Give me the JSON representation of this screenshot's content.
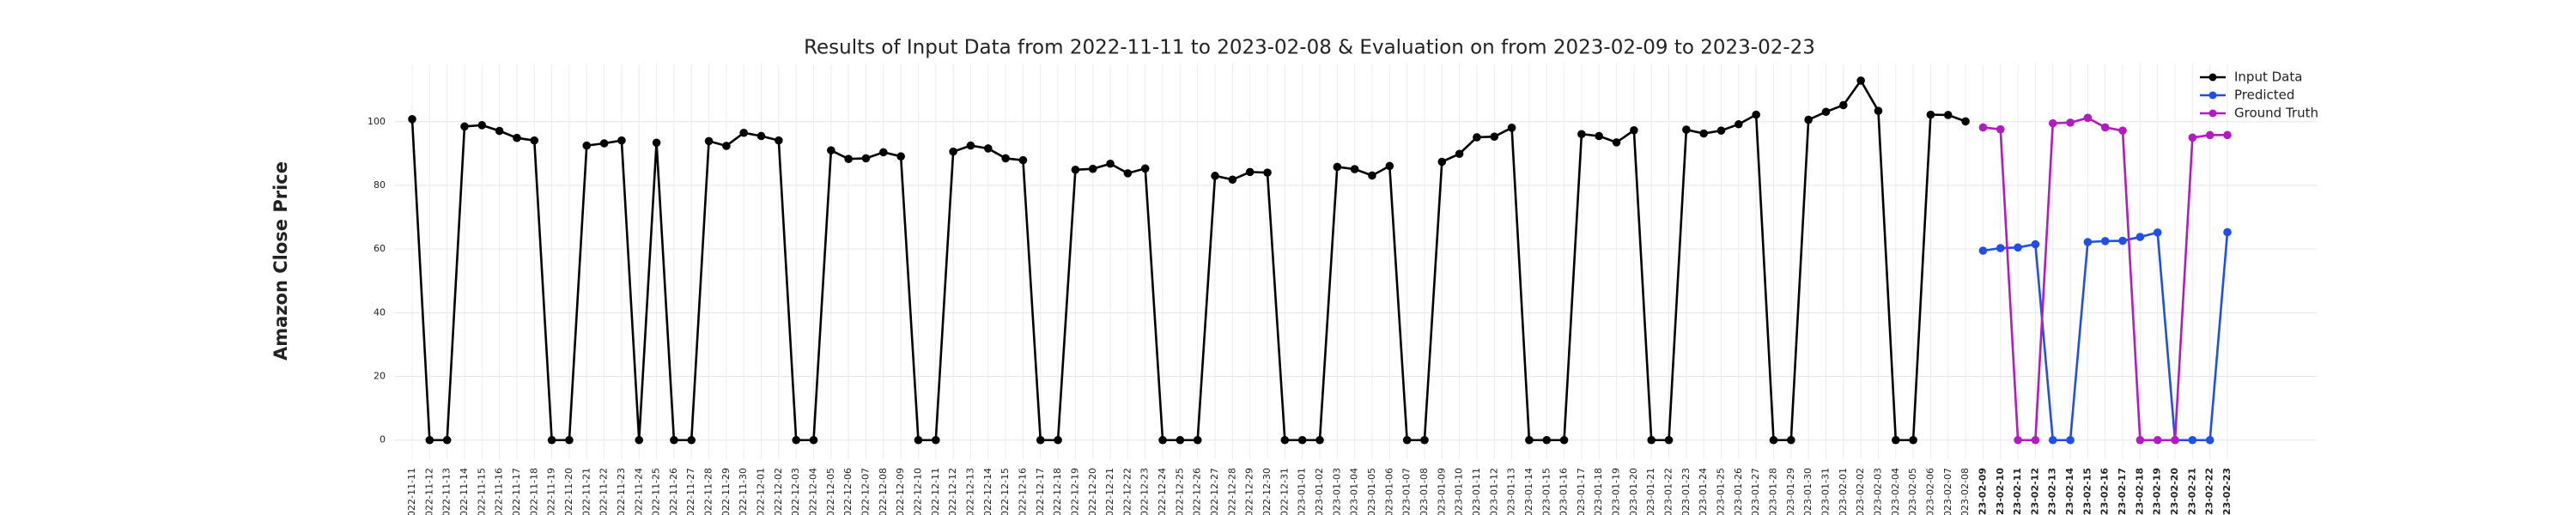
{
  "chart_data": {
    "type": "line",
    "title": "Results of Input Data from 2022-11-11 to 2023-02-08 & Evaluation on from 2023-02-09 to 2023-02-23",
    "y_label": "Amazon Close Price",
    "categories": [
      "2022-11-11",
      "2022-11-12",
      "2022-11-13",
      "2022-11-14",
      "2022-11-15",
      "2022-11-16",
      "2022-11-17",
      "2022-11-18",
      "2022-11-19",
      "2022-11-20",
      "2022-11-21",
      "2022-11-22",
      "2022-11-23",
      "2022-11-24",
      "2022-11-25",
      "2022-11-26",
      "2022-11-27",
      "2022-11-28",
      "2022-11-29",
      "2022-11-30",
      "2022-12-01",
      "2022-12-02",
      "2022-12-03",
      "2022-12-04",
      "2022-12-05",
      "2022-12-06",
      "2022-12-07",
      "2022-12-08",
      "2022-12-09",
      "2022-12-10",
      "2022-12-11",
      "2022-12-12",
      "2022-12-13",
      "2022-12-14",
      "2022-12-15",
      "2022-12-16",
      "2022-12-17",
      "2022-12-18",
      "2022-12-19",
      "2022-12-20",
      "2022-12-21",
      "2022-12-22",
      "2022-12-23",
      "2022-12-24",
      "2022-12-25",
      "2022-12-26",
      "2022-12-27",
      "2022-12-28",
      "2022-12-29",
      "2022-12-30",
      "2022-12-31",
      "2023-01-01",
      "2023-01-02",
      "2023-01-03",
      "2023-01-04",
      "2023-01-05",
      "2023-01-06",
      "2023-01-07",
      "2023-01-08",
      "2023-01-09",
      "2023-01-10",
      "2023-01-11",
      "2023-01-12",
      "2023-01-13",
      "2023-01-14",
      "2023-01-15",
      "2023-01-16",
      "2023-01-17",
      "2023-01-18",
      "2023-01-19",
      "2023-01-20",
      "2023-01-21",
      "2023-01-22",
      "2023-01-23",
      "2023-01-24",
      "2023-01-25",
      "2023-01-26",
      "2023-01-27",
      "2023-01-28",
      "2023-01-29",
      "2023-01-30",
      "2023-01-31",
      "2023-02-01",
      "2023-02-02",
      "2023-02-03",
      "2023-02-04",
      "2023-02-05",
      "2023-02-06",
      "2023-02-07",
      "2023-02-08",
      "2023-02-09",
      "2023-02-10",
      "2023-02-11",
      "2023-02-12",
      "2023-02-13",
      "2023-02-14",
      "2023-02-15",
      "2023-02-16",
      "2023-02-17",
      "2023-02-18",
      "2023-02-19",
      "2023-02-20",
      "2023-02-21",
      "2023-02-22",
      "2023-02-23"
    ],
    "series": [
      {
        "name": "Input Data",
        "color": "#000000",
        "values": [
          100.8,
          0,
          0,
          98.5,
          98.9,
          97.1,
          94.9,
          94.1,
          0,
          0,
          92.5,
          93.2,
          94.1,
          0,
          93.4,
          0,
          0,
          93.9,
          92.4,
          96.5,
          95.5,
          94.1,
          0,
          0,
          91.0,
          88.3,
          88.5,
          90.4,
          89.1,
          0,
          0,
          90.6,
          92.5,
          91.6,
          88.5,
          87.9,
          0,
          0,
          84.9,
          85.2,
          86.8,
          83.8,
          85.3,
          0,
          0,
          0,
          83.0,
          81.8,
          84.2,
          84.0,
          0,
          0,
          0,
          85.8,
          85.1,
          83.1,
          86.1,
          0,
          0,
          87.4,
          89.9,
          95.1,
          95.3,
          98.1,
          0,
          0,
          0,
          96.1,
          95.5,
          93.5,
          97.3,
          0,
          0,
          97.5,
          96.3,
          97.2,
          99.2,
          102.2,
          0,
          0,
          100.6,
          103.1,
          105.2,
          112.9,
          103.4,
          0,
          0,
          102.2,
          102.1,
          100.1,
          null,
          null,
          null,
          null,
          null,
          null,
          null,
          null,
          null,
          null,
          null,
          null,
          null,
          null,
          null
        ]
      },
      {
        "name": "Predicted",
        "color": "#1f4fe6",
        "values": [
          null,
          null,
          null,
          null,
          null,
          null,
          null,
          null,
          null,
          null,
          null,
          null,
          null,
          null,
          null,
          null,
          null,
          null,
          null,
          null,
          null,
          null,
          null,
          null,
          null,
          null,
          null,
          null,
          null,
          null,
          null,
          null,
          null,
          null,
          null,
          null,
          null,
          null,
          null,
          null,
          null,
          null,
          null,
          null,
          null,
          null,
          null,
          null,
          null,
          null,
          null,
          null,
          null,
          null,
          null,
          null,
          null,
          null,
          null,
          null,
          null,
          null,
          null,
          null,
          null,
          null,
          null,
          null,
          null,
          null,
          null,
          null,
          null,
          null,
          null,
          null,
          null,
          null,
          null,
          null,
          null,
          null,
          null,
          null,
          null,
          null,
          null,
          null,
          null,
          null,
          59.5,
          60.3,
          60.5,
          61.5,
          0,
          0,
          62.2,
          62.5,
          62.6,
          63.8,
          65.2,
          0,
          0,
          0,
          65.3
        ]
      },
      {
        "name": "Ground Truth",
        "color": "#b01cc0",
        "values": [
          null,
          null,
          null,
          null,
          null,
          null,
          null,
          null,
          null,
          null,
          null,
          null,
          null,
          null,
          null,
          null,
          null,
          null,
          null,
          null,
          null,
          null,
          null,
          null,
          null,
          null,
          null,
          null,
          null,
          null,
          null,
          null,
          null,
          null,
          null,
          null,
          null,
          null,
          null,
          null,
          null,
          null,
          null,
          null,
          null,
          null,
          null,
          null,
          null,
          null,
          null,
          null,
          null,
          null,
          null,
          null,
          null,
          null,
          null,
          null,
          null,
          null,
          null,
          null,
          null,
          null,
          null,
          null,
          null,
          null,
          null,
          null,
          null,
          null,
          null,
          null,
          null,
          null,
          null,
          null,
          null,
          null,
          null,
          null,
          null,
          null,
          null,
          null,
          null,
          null,
          98.2,
          97.6,
          0,
          0,
          99.5,
          99.7,
          101.2,
          98.2,
          97.2,
          0,
          0,
          0,
          95.0,
          95.8,
          95.8
        ]
      }
    ],
    "ylim": [
      -6,
      118
    ],
    "yticks": [
      0,
      20,
      40,
      60,
      80,
      100
    ],
    "grid": true,
    "legend": "upper right"
  }
}
